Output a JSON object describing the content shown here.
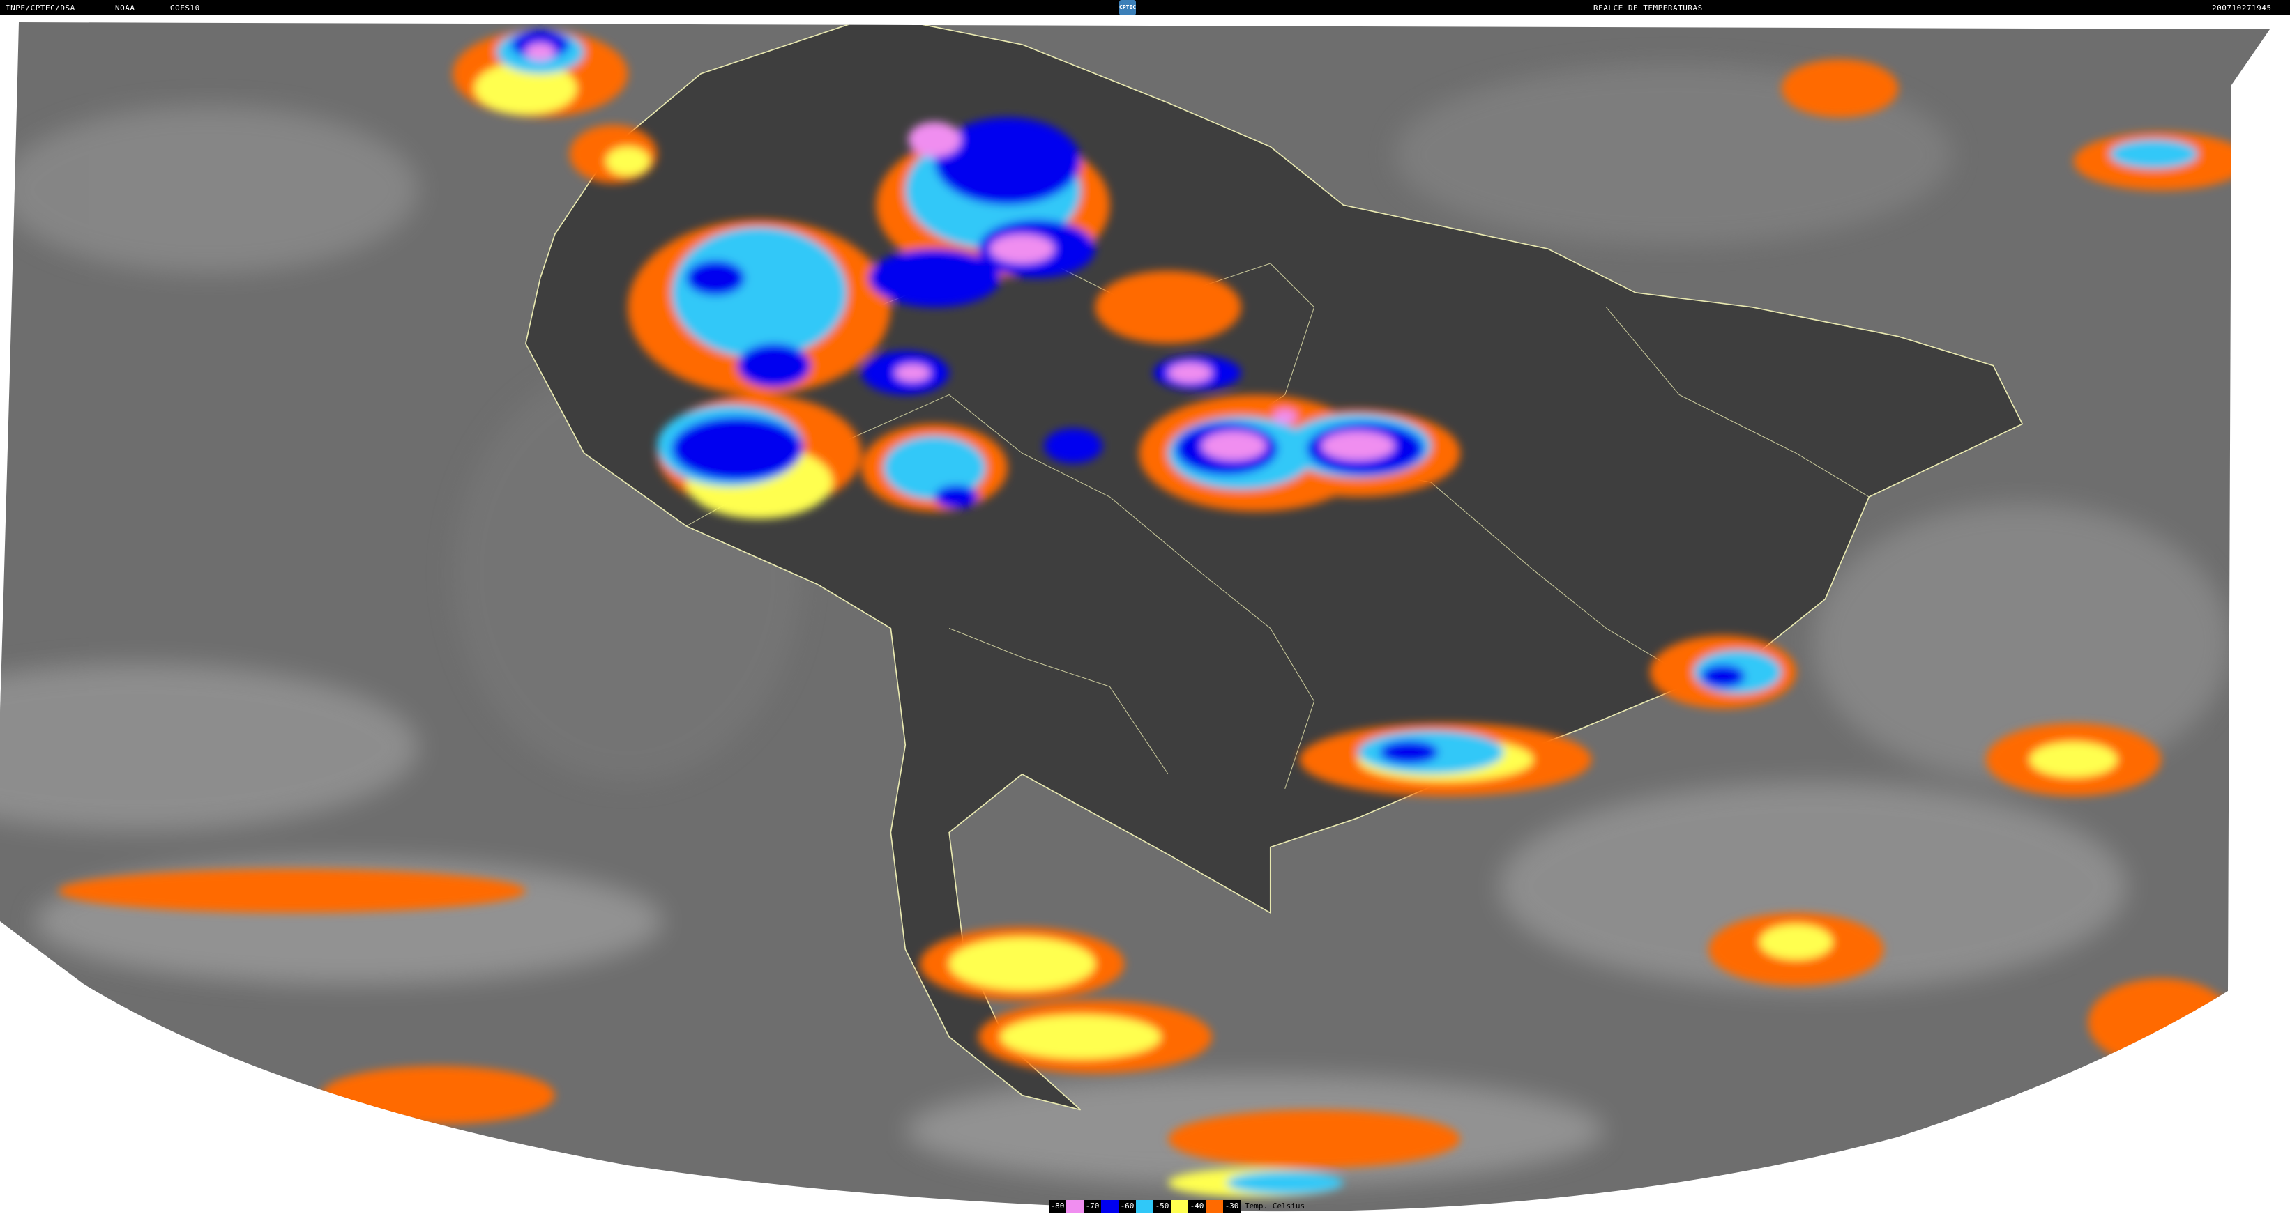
{
  "header": {
    "agency": "INPE/CPTEC/DSA",
    "source": "NOAA",
    "satellite": "GOES10",
    "logo_text": "CPTEC",
    "product": "REALCE DE TEMPERATURAS",
    "timestamp": "200710271945"
  },
  "legend": {
    "items": [
      {
        "label": "-80",
        "color": "#f08ef0"
      },
      {
        "label": "-70",
        "color": "#0000f0"
      },
      {
        "label": "-60",
        "color": "#30c8f8"
      },
      {
        "label": "-50",
        "color": "#ffff50"
      },
      {
        "label": "-40",
        "color": "#ff6a00"
      },
      {
        "label": "-30",
        "color": null
      }
    ],
    "unit": "Temp. Celsius"
  },
  "colors": {
    "earth_gray": "#6e6e6e",
    "land_dark": "#3e3e3e",
    "borders": "#e8e8b0"
  }
}
